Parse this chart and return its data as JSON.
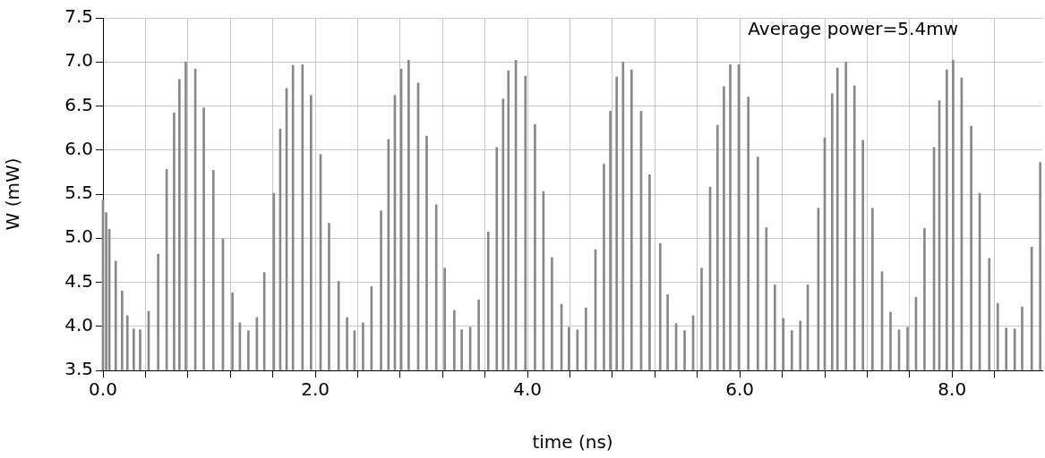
{
  "chart_data": {
    "type": "bar",
    "xlabel": "time (ns)",
    "ylabel": "W (mW)",
    "annotations": [
      "Average power=5.4mw"
    ],
    "x": [
      0,
      0.03,
      0.06,
      0.12,
      0.18,
      0.23,
      0.29,
      0.35,
      0.43,
      0.52,
      0.6,
      0.67,
      0.72,
      0.78,
      0.87,
      0.95,
      1.04,
      1.13,
      1.22,
      1.29,
      1.37,
      1.45,
      1.52,
      1.61,
      1.67,
      1.73,
      1.79,
      1.88,
      1.96,
      2.05,
      2.13,
      2.22,
      2.3,
      2.37,
      2.45,
      2.53,
      2.62,
      2.69,
      2.75,
      2.81,
      2.88,
      2.97,
      3.05,
      3.14,
      3.22,
      3.31,
      3.38,
      3.46,
      3.54,
      3.63,
      3.71,
      3.77,
      3.82,
      3.89,
      3.98,
      4.07,
      4.15,
      4.23,
      4.32,
      4.39,
      4.47,
      4.55,
      4.64,
      4.72,
      4.78,
      4.84,
      4.9,
      4.98,
      5.07,
      5.15,
      5.25,
      5.32,
      5.4,
      5.48,
      5.56,
      5.64,
      5.72,
      5.79,
      5.85,
      5.91,
      5.99,
      6.08,
      6.17,
      6.25,
      6.33,
      6.41,
      6.49,
      6.57,
      6.64,
      6.74,
      6.8,
      6.87,
      6.92,
      7.0,
      7.08,
      7.16,
      7.25,
      7.34,
      7.42,
      7.5,
      7.58,
      7.66,
      7.74,
      7.83,
      7.88,
      7.95,
      8.01,
      8.09,
      8.18,
      8.26,
      8.35,
      8.43,
      8.51,
      8.59,
      8.66,
      8.75,
      8.83
    ],
    "series": [
      {
        "color": "#888888",
        "values": [
          5.43,
          5.29,
          5.1,
          4.74,
          4.4,
          4.12,
          3.97,
          3.96,
          4.17,
          4.82,
          5.78,
          6.42,
          6.8,
          7.0,
          6.92,
          6.48,
          5.77,
          4.99,
          4.38,
          4.04,
          3.95,
          4.1,
          4.61,
          5.51,
          6.24,
          6.7,
          6.96,
          6.97,
          6.62,
          5.95,
          5.17,
          4.51,
          4.1,
          3.95,
          4.04,
          4.45,
          5.31,
          6.12,
          6.62,
          6.92,
          7.02,
          6.76,
          6.16,
          5.38,
          4.66,
          4.18,
          3.96,
          3.99,
          4.3,
          5.07,
          6.03,
          6.58,
          6.9,
          7.02,
          6.84,
          6.29,
          5.53,
          4.78,
          4.25,
          3.99,
          3.96,
          4.21,
          4.87,
          5.84,
          6.44,
          6.83,
          7.0,
          6.91,
          6.44,
          5.72,
          4.94,
          4.36,
          4.03,
          3.95,
          4.12,
          4.66,
          5.58,
          6.28,
          6.72,
          6.97,
          6.97,
          6.6,
          5.92,
          5.12,
          4.47,
          4.09,
          3.95,
          4.06,
          4.47,
          5.34,
          6.14,
          6.64,
          6.93,
          7.0,
          6.73,
          6.11,
          5.34,
          4.62,
          4.16,
          3.96,
          3.99,
          4.33,
          5.11,
          6.03,
          6.56,
          6.91,
          7.02,
          6.82,
          6.27,
          5.51,
          4.77,
          4.26,
          3.98,
          3.97,
          4.22,
          4.9,
          5.86
        ]
      }
    ],
    "xlim": [
      0,
      8.85
    ],
    "xticks": [
      {
        "value": 0,
        "label": "0.0"
      },
      {
        "value": 0.4,
        "label": null
      },
      {
        "value": 0.8,
        "label": null
      },
      {
        "value": 1.2,
        "label": null
      },
      {
        "value": 1.6,
        "label": null
      },
      {
        "value": 2,
        "label": "2.0"
      },
      {
        "value": 2.4,
        "label": null
      },
      {
        "value": 2.8,
        "label": null
      },
      {
        "value": 3.2,
        "label": null
      },
      {
        "value": 3.6,
        "label": null
      },
      {
        "value": 4,
        "label": "4.0"
      },
      {
        "value": 4.4,
        "label": null
      },
      {
        "value": 4.8,
        "label": null
      },
      {
        "value": 5.2,
        "label": null
      },
      {
        "value": 5.6,
        "label": null
      },
      {
        "value": 6,
        "label": "6.0"
      },
      {
        "value": 6.4,
        "label": null
      },
      {
        "value": 6.8,
        "label": null
      },
      {
        "value": 7.2,
        "label": null
      },
      {
        "value": 7.6,
        "label": null
      },
      {
        "value": 8,
        "label": "8.0"
      },
      {
        "value": 8.4,
        "label": null
      }
    ],
    "ylim": [
      3.5,
      7.5
    ],
    "yticks": [
      3.5,
      {
        "value": 4,
        "label": "4.0"
      },
      4.5,
      {
        "value": 5,
        "label": "5.0"
      },
      5.5,
      {
        "value": 6,
        "label": "6.0"
      },
      6.5,
      {
        "value": 7,
        "label": "7.0"
      },
      7.5
    ],
    "grid": true,
    "legend": false
  }
}
